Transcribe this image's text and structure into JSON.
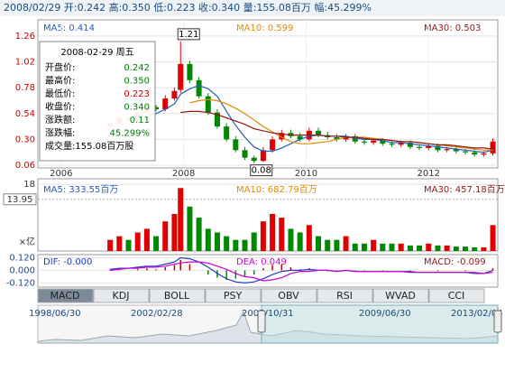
{
  "header": "2008/02/29 开:0.242 高:0.350 低:0.223 收:0.340 量:155.08百万 幅:45.299%",
  "tooltip": {
    "title": "2008-02-29 周五",
    "rows": [
      {
        "label": "开盘价:",
        "value": "0.242",
        "color": "#008000"
      },
      {
        "label": "最高价:",
        "value": "0.350",
        "color": "#008000"
      },
      {
        "label": "最低价:",
        "value": "0.223",
        "color": "#cc0000"
      },
      {
        "label": "收盘价:",
        "value": "0.340",
        "color": "#008000"
      },
      {
        "label": "涨跌额:",
        "value": "0.11",
        "color": "#008000"
      },
      {
        "label": "涨跌幅:",
        "value": "45.299%",
        "color": "#008000"
      }
    ],
    "volume": "成交量:155.08百万股"
  },
  "chart_data": [
    {
      "type": "candlestick",
      "legend": [
        {
          "text": "MA5: 0.414",
          "color": "#1f5fbf"
        },
        {
          "text": "MA10: 0.599",
          "color": "#e08a00"
        },
        {
          "text": "MA30: 0.503",
          "color": "#8b1a1a"
        }
      ],
      "xlim": [
        2005.62,
        2013.13
      ],
      "xticks": [
        2006,
        2008,
        2010,
        2012
      ],
      "ylim": [
        0.035,
        1.41
      ],
      "yticks": [
        {
          "value": 1.26,
          "label": "1.26"
        },
        {
          "value": 1.02,
          "label": "1.02"
        },
        {
          "value": 0.78,
          "label": "0.78"
        },
        {
          "value": 0.54,
          "label": "0.54"
        },
        {
          "value": 0.3,
          "label": "0.30"
        },
        {
          "value": 0.06,
          "label": "0.06"
        }
      ],
      "up_color": "#e00000",
      "down_color": "#008800",
      "x": [
        2006.8,
        2006.95,
        2007.1,
        2007.25,
        2007.4,
        2007.55,
        2007.7,
        2007.85,
        2007.95,
        2008.1,
        2008.25,
        2008.4,
        2008.55,
        2008.7,
        2008.85,
        2009.0,
        2009.15,
        2009.3,
        2009.45,
        2009.6,
        2009.75,
        2009.9,
        2010.05,
        2010.2,
        2010.35,
        2010.5,
        2010.65,
        2010.8,
        2010.95,
        2011.1,
        2011.25,
        2011.4,
        2011.55,
        2011.7,
        2011.85,
        2012.0,
        2012.15,
        2012.3,
        2012.45,
        2012.6,
        2012.75,
        2012.9,
        2013.05
      ],
      "open": [
        0.42,
        0.45,
        0.5,
        0.48,
        0.55,
        0.6,
        0.58,
        0.68,
        0.76,
        1.0,
        0.85,
        0.7,
        0.55,
        0.42,
        0.3,
        0.2,
        0.13,
        0.1,
        0.2,
        0.3,
        0.36,
        0.33,
        0.3,
        0.38,
        0.34,
        0.32,
        0.3,
        0.33,
        0.28,
        0.27,
        0.29,
        0.26,
        0.25,
        0.27,
        0.23,
        0.22,
        0.24,
        0.2,
        0.21,
        0.19,
        0.18,
        0.16,
        0.17
      ],
      "high": [
        0.48,
        0.53,
        0.52,
        0.58,
        0.63,
        0.62,
        0.71,
        0.78,
        1.21,
        1.03,
        0.88,
        0.73,
        0.58,
        0.45,
        0.33,
        0.23,
        0.15,
        0.23,
        0.33,
        0.39,
        0.39,
        0.36,
        0.41,
        0.41,
        0.37,
        0.35,
        0.35,
        0.35,
        0.3,
        0.31,
        0.31,
        0.28,
        0.29,
        0.29,
        0.25,
        0.26,
        0.26,
        0.23,
        0.23,
        0.21,
        0.2,
        0.19,
        0.31
      ],
      "low": [
        0.4,
        0.43,
        0.46,
        0.46,
        0.53,
        0.56,
        0.56,
        0.66,
        0.73,
        0.82,
        0.68,
        0.53,
        0.4,
        0.28,
        0.18,
        0.11,
        0.08,
        0.09,
        0.18,
        0.28,
        0.31,
        0.28,
        0.28,
        0.32,
        0.3,
        0.28,
        0.28,
        0.26,
        0.25,
        0.25,
        0.24,
        0.23,
        0.23,
        0.21,
        0.2,
        0.2,
        0.18,
        0.18,
        0.17,
        0.16,
        0.14,
        0.14,
        0.15
      ],
      "close": [
        0.45,
        0.5,
        0.48,
        0.55,
        0.6,
        0.58,
        0.68,
        0.75,
        1.0,
        0.85,
        0.7,
        0.55,
        0.42,
        0.3,
        0.2,
        0.13,
        0.1,
        0.2,
        0.3,
        0.36,
        0.33,
        0.3,
        0.38,
        0.34,
        0.32,
        0.3,
        0.33,
        0.28,
        0.27,
        0.29,
        0.26,
        0.25,
        0.27,
        0.23,
        0.22,
        0.24,
        0.2,
        0.21,
        0.19,
        0.18,
        0.16,
        0.17,
        0.28
      ],
      "series": [
        {
          "name": "MA5",
          "color": "#1f5fbf",
          "values": [
            null,
            null,
            null,
            null,
            0.52,
            0.54,
            0.58,
            0.63,
            0.72,
            0.77,
            0.8,
            0.77,
            0.7,
            0.56,
            0.43,
            0.32,
            0.23,
            0.19,
            0.19,
            0.22,
            0.26,
            0.3,
            0.33,
            0.34,
            0.33,
            0.33,
            0.33,
            0.31,
            0.3,
            0.3,
            0.29,
            0.27,
            0.27,
            0.26,
            0.25,
            0.24,
            0.23,
            0.22,
            0.21,
            0.2,
            0.19,
            0.18,
            0.2
          ]
        },
        {
          "name": "MA10",
          "color": "#e08a00",
          "values": [
            null,
            null,
            null,
            null,
            null,
            null,
            null,
            null,
            null,
            0.64,
            0.66,
            0.67,
            0.66,
            0.63,
            0.59,
            0.54,
            0.48,
            0.42,
            0.37,
            0.32,
            0.28,
            0.26,
            0.26,
            0.27,
            0.28,
            0.3,
            0.32,
            0.32,
            0.32,
            0.31,
            0.3,
            0.29,
            0.28,
            0.28,
            0.27,
            0.26,
            0.25,
            0.24,
            0.23,
            0.22,
            0.21,
            0.2,
            0.2
          ]
        },
        {
          "name": "MA30",
          "color": "#8b1a1a",
          "values": [
            null,
            null,
            null,
            null,
            null,
            null,
            null,
            null,
            0.55,
            0.56,
            0.56,
            0.55,
            0.53,
            0.5,
            0.47,
            0.44,
            0.4,
            0.38,
            0.36,
            0.35,
            0.34,
            0.34,
            0.34,
            0.34,
            0.33,
            0.33,
            0.32,
            0.32,
            0.31,
            0.3,
            0.3,
            0.29,
            0.28,
            0.28,
            0.27,
            0.26,
            0.25,
            0.25,
            0.24,
            0.23,
            0.22,
            0.22,
            0.21
          ]
        }
      ],
      "high_mark": {
        "x": 2007.95,
        "value": 1.21
      },
      "low_mark": {
        "x": 2009.15,
        "value": 0.08
      }
    },
    {
      "type": "volume",
      "legend": [
        {
          "text": "MA5: 333.55百万",
          "color": "#1f5fbf"
        },
        {
          "text": "MA10: 682.79百万",
          "color": "#e08a00"
        },
        {
          "text": "MA30: 457.18百万",
          "color": "#8b1a1a"
        }
      ],
      "unit": "×亿",
      "ylim": [
        0,
        19.5
      ],
      "yticks": [
        18
      ],
      "cursor_value": 13.95,
      "values": [
        3,
        4,
        3,
        5,
        6,
        4,
        8,
        10,
        17,
        12,
        9,
        6,
        5,
        4,
        3,
        3,
        5,
        8,
        10,
        9,
        6,
        5,
        7,
        4,
        3,
        3,
        4,
        2,
        2,
        3,
        2,
        2,
        2,
        1.5,
        1.5,
        2,
        1.5,
        1.5,
        1.2,
        1.2,
        1,
        1,
        7
      ]
    },
    {
      "type": "macd",
      "legend": [
        {
          "text": "DIF: -0.000",
          "color": "#1f3fbf"
        },
        {
          "text": "DEA: 0.049",
          "color": "#d000d0"
        },
        {
          "text": "MACD: -0.099",
          "color": "#8b1a1a"
        }
      ],
      "ylim": [
        -0.16,
        0.15
      ],
      "yticks": [
        {
          "value": 0.12,
          "label": "0.120"
        },
        {
          "value": 0,
          "label": "0.000"
        },
        {
          "value": -0.12,
          "label": "-0.120"
        }
      ],
      "hist": [
        0.01,
        0.01,
        0.0,
        0.01,
        0.02,
        0.01,
        0.03,
        0.05,
        0.1,
        0.06,
        0.0,
        -0.04,
        -0.07,
        -0.09,
        -0.08,
        -0.06,
        -0.04,
        0.02,
        0.05,
        0.06,
        0.03,
        0.01,
        0.02,
        0.0,
        -0.01,
        -0.01,
        0.0,
        -0.01,
        -0.01,
        0.0,
        -0.01,
        0.0,
        0.0,
        -0.01,
        0.0,
        0.0,
        -0.01,
        0.0,
        0.0,
        -0.01,
        0.0,
        0.0,
        0.02
      ],
      "series": [
        {
          "name": "DIF",
          "color": "#1f3fbf",
          "values": [
            0.01,
            0.02,
            0.02,
            0.03,
            0.04,
            0.04,
            0.06,
            0.08,
            0.12,
            0.11,
            0.08,
            0.03,
            -0.03,
            -0.08,
            -0.11,
            -0.12,
            -0.11,
            -0.08,
            -0.04,
            -0.01,
            0.0,
            0.0,
            0.01,
            0.0,
            0.0,
            -0.01,
            0.0,
            -0.01,
            -0.01,
            -0.01,
            -0.01,
            -0.01,
            -0.01,
            -0.02,
            -0.02,
            -0.02,
            -0.02,
            -0.02,
            -0.02,
            -0.02,
            -0.03,
            -0.03,
            0.0
          ]
        },
        {
          "name": "DEA",
          "color": "#d000d0",
          "values": [
            0.0,
            0.01,
            0.02,
            0.02,
            0.03,
            0.03,
            0.04,
            0.06,
            0.07,
            0.08,
            0.08,
            0.07,
            0.04,
            0.01,
            -0.03,
            -0.06,
            -0.07,
            -0.1,
            -0.09,
            -0.07,
            -0.03,
            -0.01,
            -0.01,
            0.0,
            0.0,
            -0.01,
            0.0,
            -0.01,
            -0.01,
            -0.01,
            -0.01,
            -0.01,
            -0.01,
            -0.01,
            -0.02,
            -0.02,
            -0.02,
            -0.02,
            -0.02,
            -0.02,
            -0.02,
            -0.03,
            -0.02
          ]
        }
      ]
    }
  ],
  "tabs": [
    "MACD",
    "KDJ",
    "BOLL",
    "PSY",
    "OBV",
    "RSI",
    "WVAD",
    "CCI"
  ],
  "navigator": [
    "1998/06/30",
    "2002/02/28",
    "2005/10/31",
    "2009/06/30",
    "2013/02/04"
  ]
}
